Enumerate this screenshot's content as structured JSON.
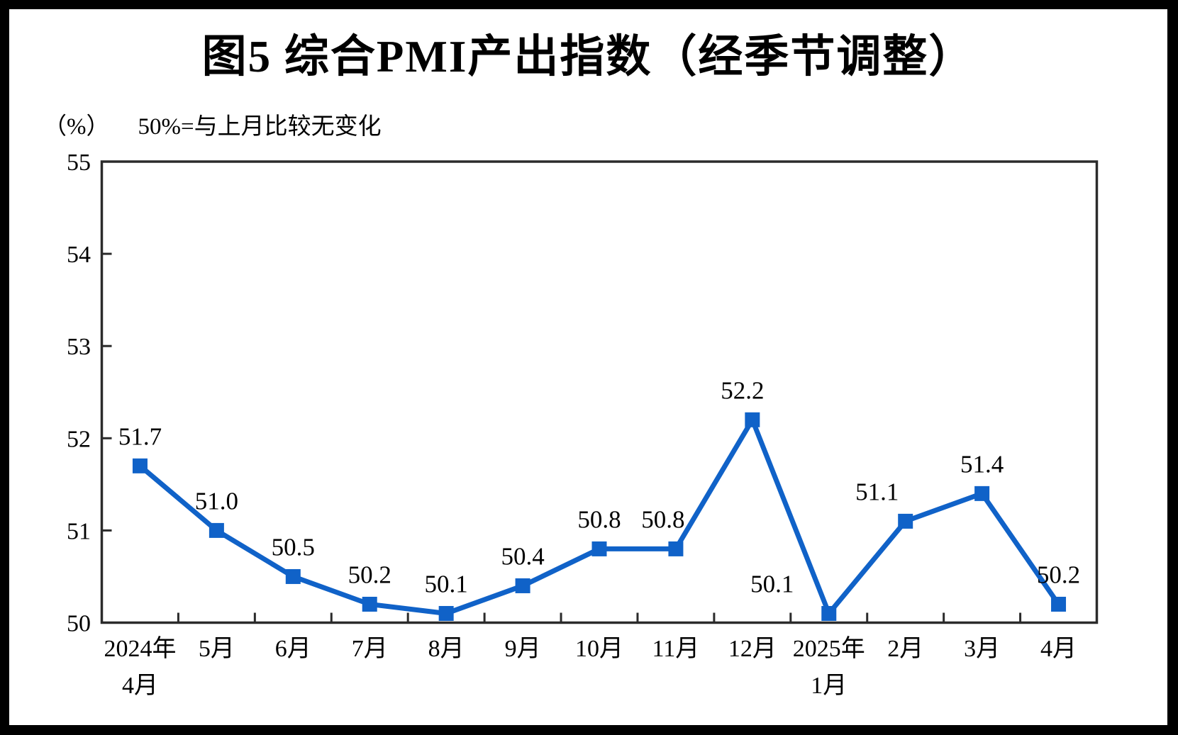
{
  "frame_color": "#000000",
  "background_color": "#ffffff",
  "chart_data": {
    "type": "line",
    "title": "图5 综合PMI产出指数（经季节调整）",
    "unit_label": "（%）",
    "note": "50%=与上月比较无变化",
    "categories": [
      [
        "2024年",
        "4月"
      ],
      [
        "5月"
      ],
      [
        "6月"
      ],
      [
        "7月"
      ],
      [
        "8月"
      ],
      [
        "9月"
      ],
      [
        "10月"
      ],
      [
        "11月"
      ],
      [
        "12月"
      ],
      [
        "2025年",
        "1月"
      ],
      [
        "2月"
      ],
      [
        "3月"
      ],
      [
        "4月"
      ]
    ],
    "values": [
      51.7,
      51.0,
      50.5,
      50.2,
      50.1,
      50.4,
      50.8,
      50.8,
      52.2,
      50.1,
      51.1,
      51.4,
      50.2
    ],
    "data_labels": [
      "51.7",
      "51.0",
      "50.5",
      "50.2",
      "50.1",
      "50.4",
      "50.8",
      "50.8",
      "52.2",
      "50.1",
      "51.1",
      "51.4",
      "50.2"
    ],
    "ylim": [
      50,
      55
    ],
    "yticks": [
      50,
      51,
      52,
      53,
      54,
      55
    ],
    "grid": "off",
    "legend": "none",
    "marker_shape": "square",
    "series_color": "#1062c8",
    "axis_color": "#2b2b2b",
    "text_color": "#000000",
    "label_dx": [
      0,
      0,
      0,
      0,
      0,
      0,
      0,
      -18,
      -14,
      -80,
      -40,
      0,
      0
    ]
  }
}
